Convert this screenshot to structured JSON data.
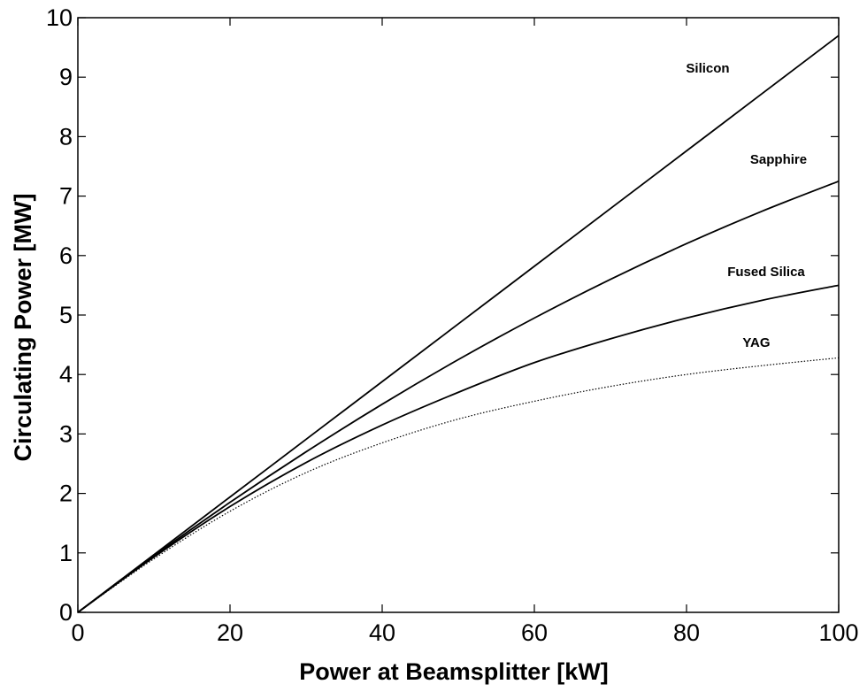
{
  "chart_data": {
    "type": "line",
    "title": "",
    "xlabel": "Power at Beamsplitter [kW]",
    "ylabel": "Circulating Power [MW]",
    "xlim": [
      0,
      100
    ],
    "ylim": [
      0,
      10
    ],
    "xticks": [
      0,
      20,
      40,
      60,
      80,
      100
    ],
    "yticks": [
      0,
      1,
      2,
      3,
      4,
      5,
      6,
      7,
      8,
      9,
      10
    ],
    "grid": false,
    "legend": "none; series labelled directly on the plot",
    "series": [
      {
        "name": "Silicon",
        "style": "solid",
        "x": [
          0,
          10,
          20,
          30,
          40,
          50,
          60,
          70,
          80,
          90,
          100
        ],
        "y": [
          0,
          0.97,
          1.94,
          2.91,
          3.88,
          4.85,
          5.82,
          6.79,
          7.76,
          8.73,
          9.7
        ]
      },
      {
        "name": "Sapphire",
        "style": "solid",
        "x": [
          0,
          10,
          20,
          30,
          40,
          50,
          60,
          70,
          80,
          90,
          100
        ],
        "y": [
          0,
          0.95,
          1.85,
          2.7,
          3.5,
          4.25,
          4.95,
          5.6,
          6.2,
          6.75,
          7.25
        ]
      },
      {
        "name": "Fused Silica",
        "style": "solid",
        "x": [
          0,
          10,
          20,
          30,
          40,
          50,
          60,
          70,
          80,
          90,
          100
        ],
        "y": [
          0,
          0.93,
          1.78,
          2.52,
          3.15,
          3.7,
          4.2,
          4.6,
          4.95,
          5.25,
          5.5
        ]
      },
      {
        "name": "YAG",
        "style": "dotted",
        "x": [
          0,
          10,
          20,
          30,
          40,
          50,
          60,
          70,
          80,
          90,
          100
        ],
        "y": [
          0,
          0.9,
          1.7,
          2.35,
          2.85,
          3.25,
          3.55,
          3.8,
          4.0,
          4.15,
          4.28
        ]
      }
    ]
  }
}
